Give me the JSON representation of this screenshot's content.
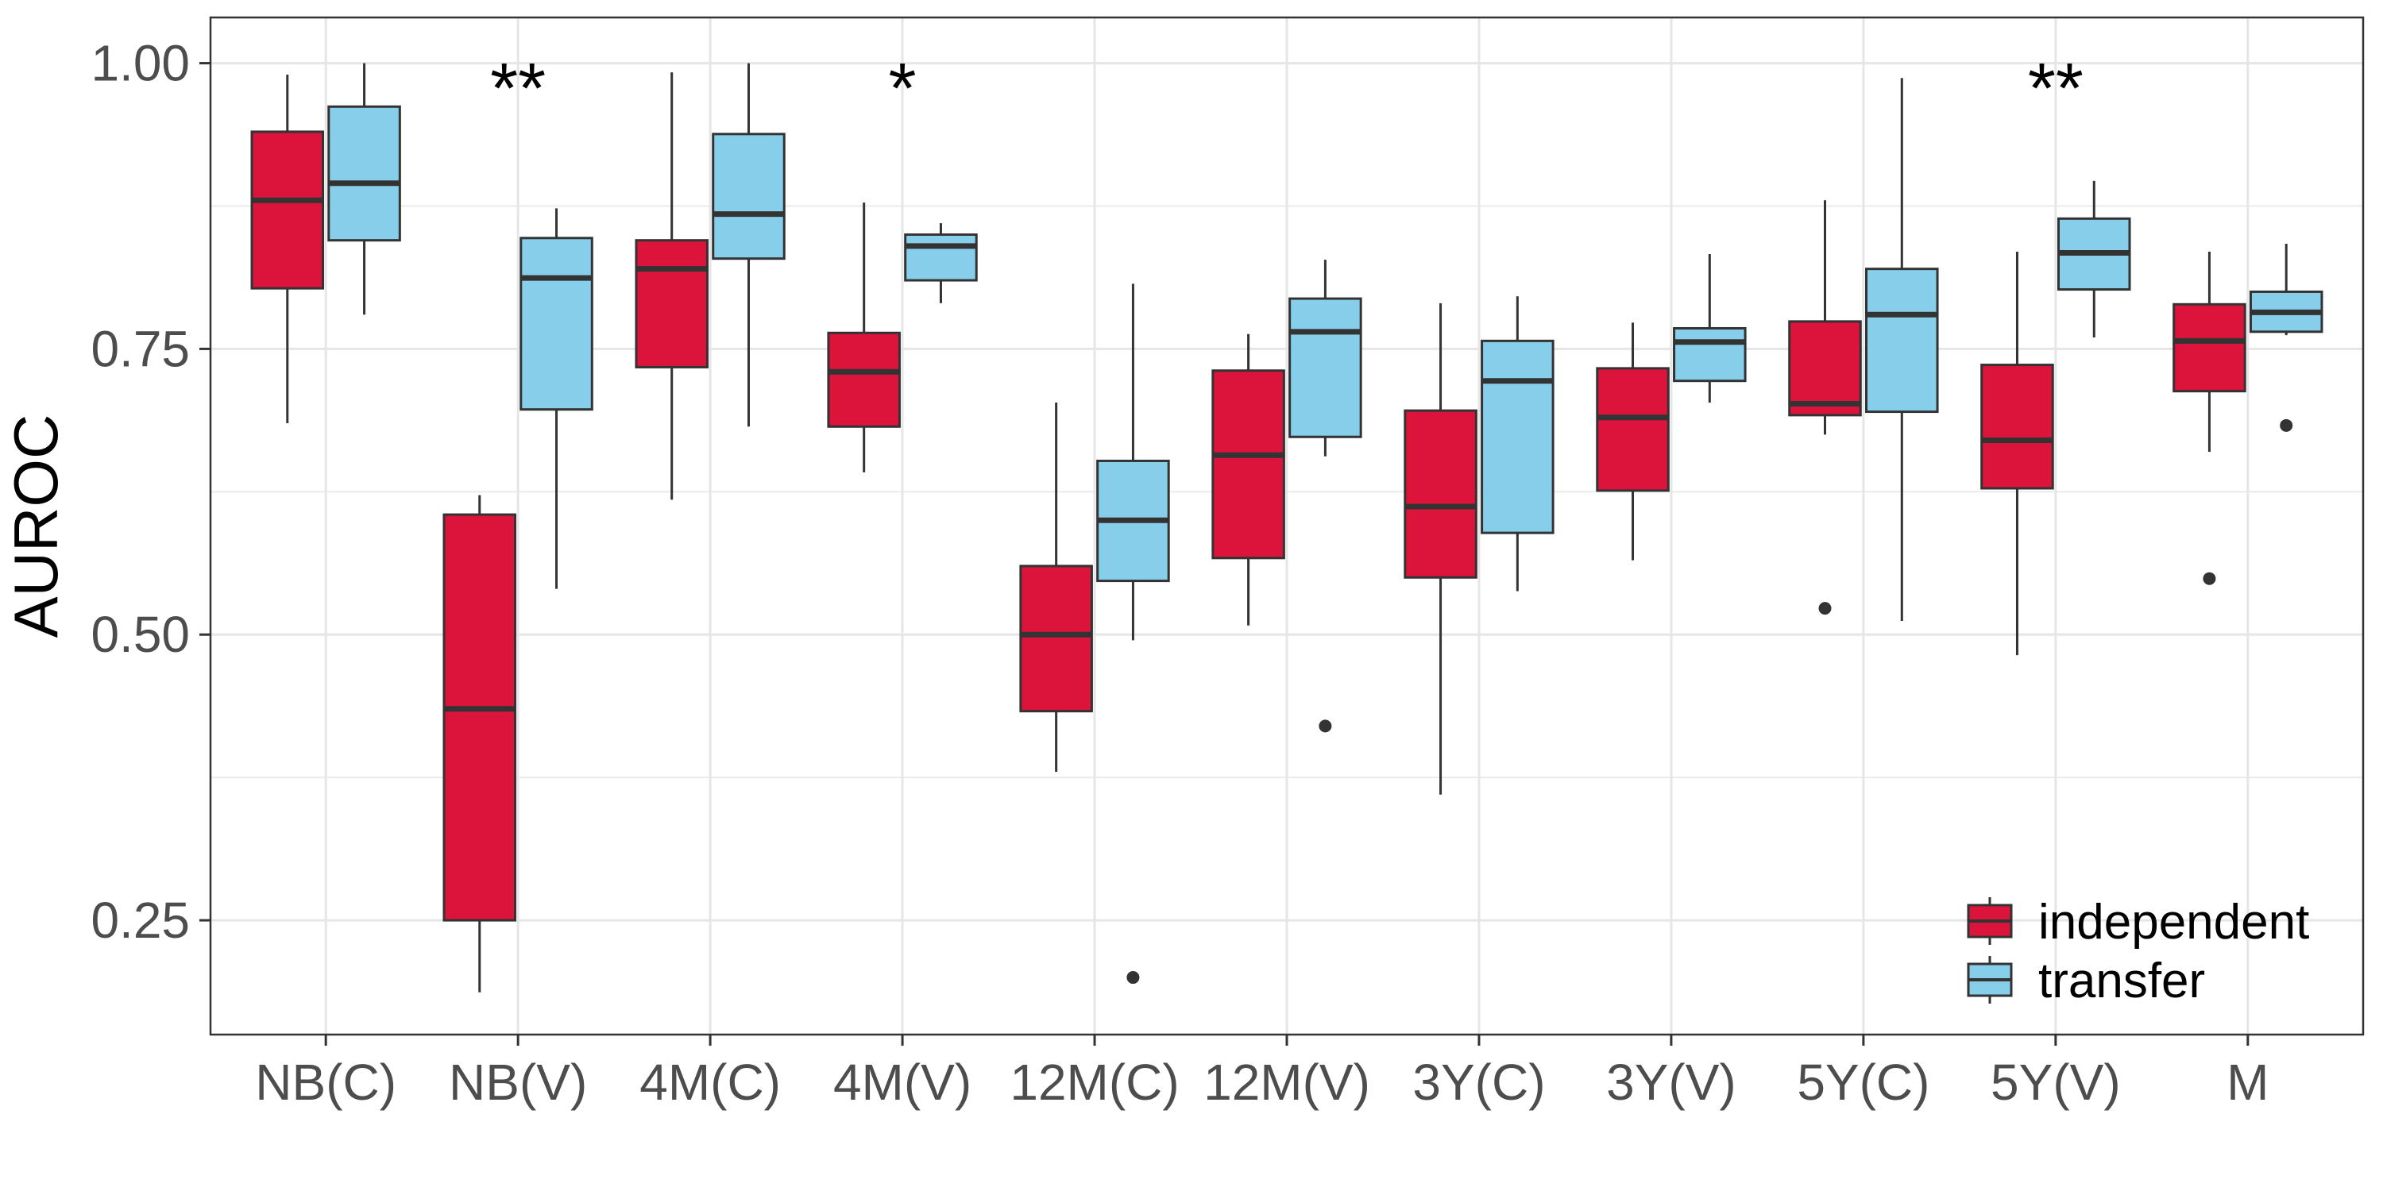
{
  "chart_data": {
    "type": "boxplot",
    "ylabel": "AUROC",
    "ylim": [
      0.15,
      1.04
    ],
    "yticks": [
      0.25,
      0.5,
      0.75,
      1.0
    ],
    "ytick_labels": [
      "0.25",
      "0.50",
      "0.75",
      "1.00"
    ],
    "grid": true,
    "legend_position": "bottom-right",
    "categories": [
      "NB(C)",
      "NB(V)",
      "4M(C)",
      "4M(V)",
      "12M(C)",
      "12M(V)",
      "3Y(C)",
      "3Y(V)",
      "5Y(C)",
      "5Y(V)",
      "M"
    ],
    "series": [
      {
        "name": "independent",
        "color": "#DC143C",
        "boxes": [
          {
            "min": 0.685,
            "q1": 0.803,
            "median": 0.88,
            "q3": 0.94,
            "max": 0.99,
            "outliers": []
          },
          {
            "min": 0.187,
            "q1": 0.25,
            "median": 0.435,
            "q3": 0.605,
            "max": 0.622,
            "outliers": []
          },
          {
            "min": 0.618,
            "q1": 0.734,
            "median": 0.82,
            "q3": 0.845,
            "max": 0.992,
            "outliers": []
          },
          {
            "min": 0.642,
            "q1": 0.682,
            "median": 0.73,
            "q3": 0.764,
            "max": 0.878,
            "outliers": []
          },
          {
            "min": 0.38,
            "q1": 0.433,
            "median": 0.5,
            "q3": 0.56,
            "max": 0.703,
            "outliers": []
          },
          {
            "min": 0.508,
            "q1": 0.567,
            "median": 0.657,
            "q3": 0.731,
            "max": 0.763,
            "outliers": []
          },
          {
            "min": 0.36,
            "q1": 0.55,
            "median": 0.612,
            "q3": 0.696,
            "max": 0.79,
            "outliers": []
          },
          {
            "min": 0.565,
            "q1": 0.626,
            "median": 0.69,
            "q3": 0.733,
            "max": 0.773,
            "outliers": []
          },
          {
            "min": 0.675,
            "q1": 0.692,
            "median": 0.702,
            "q3": 0.774,
            "max": 0.88,
            "outliers": [
              0.523
            ]
          },
          {
            "min": 0.482,
            "q1": 0.628,
            "median": 0.67,
            "q3": 0.736,
            "max": 0.835,
            "outliers": []
          },
          {
            "min": 0.66,
            "q1": 0.713,
            "median": 0.757,
            "q3": 0.789,
            "max": 0.835,
            "outliers": [
              0.549
            ]
          }
        ]
      },
      {
        "name": "transfer",
        "color": "#87CEEB",
        "boxes": [
          {
            "min": 0.78,
            "q1": 0.845,
            "median": 0.895,
            "q3": 0.962,
            "max": 1.0,
            "outliers": []
          },
          {
            "min": 0.54,
            "q1": 0.697,
            "median": 0.812,
            "q3": 0.847,
            "max": 0.873,
            "outliers": []
          },
          {
            "min": 0.682,
            "q1": 0.829,
            "median": 0.868,
            "q3": 0.938,
            "max": 1.0,
            "outliers": []
          },
          {
            "min": 0.79,
            "q1": 0.81,
            "median": 0.84,
            "q3": 0.85,
            "max": 0.86,
            "outliers": []
          },
          {
            "min": 0.495,
            "q1": 0.547,
            "median": 0.6,
            "q3": 0.652,
            "max": 0.807,
            "outliers": [
              0.2
            ]
          },
          {
            "min": 0.656,
            "q1": 0.673,
            "median": 0.765,
            "q3": 0.794,
            "max": 0.828,
            "outliers": [
              0.42
            ]
          },
          {
            "min": 0.538,
            "q1": 0.589,
            "median": 0.722,
            "q3": 0.757,
            "max": 0.796,
            "outliers": []
          },
          {
            "min": 0.703,
            "q1": 0.722,
            "median": 0.756,
            "q3": 0.768,
            "max": 0.833,
            "outliers": []
          },
          {
            "min": 0.512,
            "q1": 0.695,
            "median": 0.78,
            "q3": 0.82,
            "max": 0.987,
            "outliers": []
          },
          {
            "min": 0.76,
            "q1": 0.802,
            "median": 0.834,
            "q3": 0.864,
            "max": 0.897,
            "outliers": []
          },
          {
            "min": 0.762,
            "q1": 0.765,
            "median": 0.782,
            "q3": 0.8,
            "max": 0.842,
            "outliers": [
              0.683
            ]
          }
        ]
      }
    ],
    "annotations": [
      {
        "category": "NB(V)",
        "text": "**"
      },
      {
        "category": "4M(V)",
        "text": "*"
      },
      {
        "category": "5Y(V)",
        "text": "**"
      }
    ],
    "annotation_y": 0.99
  }
}
